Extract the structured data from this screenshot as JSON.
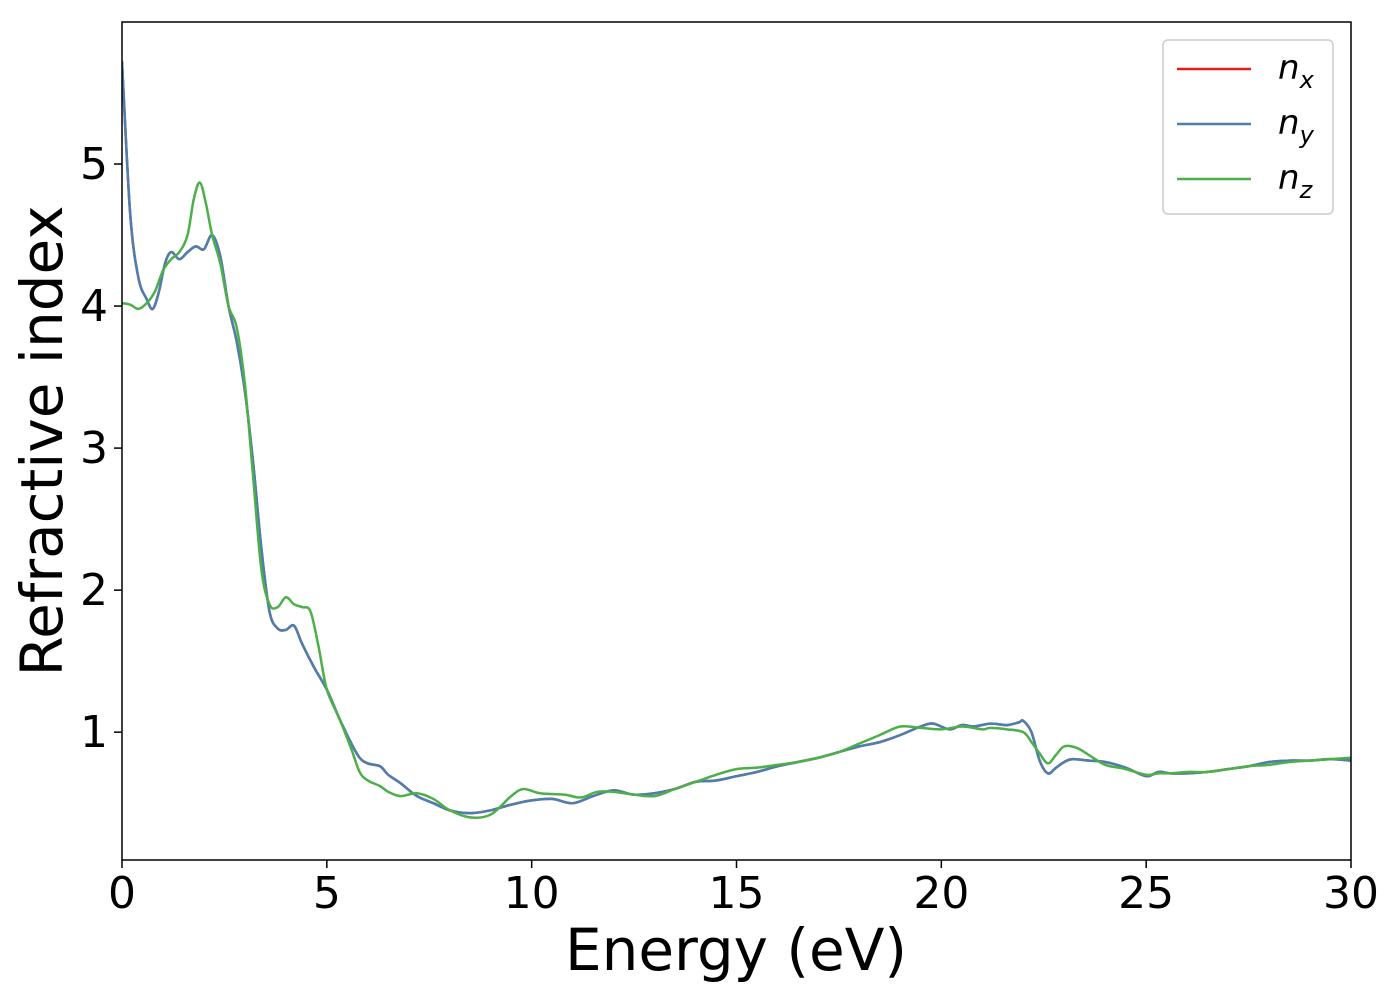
{
  "chart_data": {
    "type": "line",
    "xlabel": "Energy (eV)",
    "ylabel": "Refractive index",
    "xlim": [
      0,
      30
    ],
    "ylim": [
      0.1,
      6.0
    ],
    "xticks": [
      0,
      5,
      10,
      15,
      20,
      25,
      30
    ],
    "xtick_labels": [
      "0",
      "5",
      "10",
      "15",
      "20",
      "25",
      "30"
    ],
    "yticks": [
      1,
      2,
      3,
      4,
      5
    ],
    "ytick_labels": [
      "1",
      "2",
      "3",
      "4",
      "5"
    ],
    "grid": false,
    "legend_position": "top-right",
    "series": [
      {
        "name": "n_x",
        "label_main": "n",
        "label_sub": "x",
        "color": "#e41a1c",
        "x": [
          0,
          0.2,
          0.4,
          0.6,
          0.75,
          0.9,
          1.05,
          1.2,
          1.4,
          1.6,
          1.8,
          2.0,
          2.2,
          2.4,
          2.6,
          2.8,
          3.0,
          3.2,
          3.4,
          3.6,
          3.8,
          4.0,
          4.2,
          4.4,
          4.7,
          5.0,
          5.3,
          5.6,
          5.8,
          6.0,
          6.3,
          6.5,
          6.8,
          7.2,
          7.6,
          8.0,
          8.5,
          9.0,
          9.5,
          10.0,
          10.5,
          11.0,
          11.5,
          12.0,
          12.5,
          13.0,
          13.5,
          14.0,
          14.5,
          15.0,
          15.5,
          16.0,
          16.5,
          17.0,
          17.5,
          18.0,
          18.5,
          19.0,
          19.5,
          19.8,
          20.2,
          20.5,
          20.8,
          21.2,
          21.6,
          21.9,
          22.0,
          22.2,
          22.4,
          22.6,
          22.8,
          23.0,
          23.2,
          23.6,
          24.0,
          24.5,
          25.0,
          25.3,
          25.6,
          26.0,
          26.5,
          27.0,
          27.5,
          28.0,
          28.5,
          29.0,
          29.5,
          30.0
        ],
        "values": [
          5.72,
          4.65,
          4.2,
          4.05,
          3.98,
          4.1,
          4.3,
          4.38,
          4.33,
          4.38,
          4.42,
          4.4,
          4.5,
          4.35,
          4.0,
          3.75,
          3.4,
          2.9,
          2.3,
          1.85,
          1.73,
          1.72,
          1.75,
          1.62,
          1.45,
          1.3,
          1.1,
          0.92,
          0.82,
          0.78,
          0.76,
          0.7,
          0.64,
          0.55,
          0.5,
          0.45,
          0.43,
          0.45,
          0.49,
          0.52,
          0.53,
          0.5,
          0.55,
          0.59,
          0.56,
          0.57,
          0.6,
          0.65,
          0.66,
          0.69,
          0.72,
          0.76,
          0.79,
          0.82,
          0.86,
          0.9,
          0.93,
          0.98,
          1.04,
          1.06,
          1.02,
          1.05,
          1.04,
          1.06,
          1.05,
          1.07,
          1.08,
          1.0,
          0.8,
          0.71,
          0.75,
          0.79,
          0.81,
          0.8,
          0.79,
          0.75,
          0.69,
          0.72,
          0.71,
          0.71,
          0.72,
          0.74,
          0.76,
          0.79,
          0.8,
          0.8,
          0.81,
          0.8
        ]
      },
      {
        "name": "n_y",
        "label_main": "n",
        "label_sub": "y",
        "color": "#4a7fb0",
        "x": [
          0,
          0.2,
          0.4,
          0.6,
          0.75,
          0.9,
          1.05,
          1.2,
          1.4,
          1.6,
          1.8,
          2.0,
          2.2,
          2.4,
          2.6,
          2.8,
          3.0,
          3.2,
          3.4,
          3.6,
          3.8,
          4.0,
          4.2,
          4.4,
          4.7,
          5.0,
          5.3,
          5.6,
          5.8,
          6.0,
          6.3,
          6.5,
          6.8,
          7.2,
          7.6,
          8.0,
          8.5,
          9.0,
          9.5,
          10.0,
          10.5,
          11.0,
          11.5,
          12.0,
          12.5,
          13.0,
          13.5,
          14.0,
          14.5,
          15.0,
          15.5,
          16.0,
          16.5,
          17.0,
          17.5,
          18.0,
          18.5,
          19.0,
          19.5,
          19.8,
          20.2,
          20.5,
          20.8,
          21.2,
          21.6,
          21.9,
          22.0,
          22.2,
          22.4,
          22.6,
          22.8,
          23.0,
          23.2,
          23.6,
          24.0,
          24.5,
          25.0,
          25.3,
          25.6,
          26.0,
          26.5,
          27.0,
          27.5,
          28.0,
          28.5,
          29.0,
          29.5,
          30.0
        ],
        "values": [
          5.72,
          4.65,
          4.2,
          4.05,
          3.98,
          4.1,
          4.3,
          4.38,
          4.33,
          4.38,
          4.42,
          4.4,
          4.5,
          4.35,
          4.0,
          3.75,
          3.4,
          2.9,
          2.3,
          1.85,
          1.73,
          1.72,
          1.75,
          1.62,
          1.45,
          1.3,
          1.1,
          0.92,
          0.82,
          0.78,
          0.76,
          0.7,
          0.64,
          0.55,
          0.5,
          0.45,
          0.43,
          0.45,
          0.49,
          0.52,
          0.53,
          0.5,
          0.55,
          0.59,
          0.56,
          0.57,
          0.6,
          0.65,
          0.66,
          0.69,
          0.72,
          0.76,
          0.79,
          0.82,
          0.86,
          0.9,
          0.93,
          0.98,
          1.04,
          1.06,
          1.02,
          1.05,
          1.04,
          1.06,
          1.05,
          1.07,
          1.08,
          1.0,
          0.8,
          0.71,
          0.75,
          0.79,
          0.81,
          0.8,
          0.79,
          0.75,
          0.69,
          0.72,
          0.71,
          0.71,
          0.72,
          0.74,
          0.76,
          0.79,
          0.8,
          0.8,
          0.81,
          0.8
        ]
      },
      {
        "name": "n_z",
        "label_main": "n",
        "label_sub": "z",
        "color": "#4daf4a",
        "x": [
          0,
          0.2,
          0.4,
          0.6,
          0.8,
          1.0,
          1.2,
          1.4,
          1.6,
          1.75,
          1.9,
          2.05,
          2.2,
          2.4,
          2.6,
          2.8,
          3.0,
          3.2,
          3.4,
          3.6,
          3.8,
          4.0,
          4.2,
          4.4,
          4.6,
          4.8,
          5.0,
          5.3,
          5.6,
          5.8,
          6.0,
          6.3,
          6.5,
          6.8,
          7.2,
          7.6,
          8.0,
          8.5,
          9.0,
          9.5,
          9.8,
          10.2,
          10.8,
          11.2,
          11.6,
          12.0,
          12.5,
          13.0,
          13.5,
          14.0,
          14.5,
          15.0,
          15.5,
          16.0,
          16.5,
          17.0,
          17.5,
          18.0,
          18.5,
          19.0,
          19.5,
          20.0,
          20.5,
          21.0,
          21.2,
          21.6,
          22.0,
          22.2,
          22.4,
          22.6,
          22.8,
          23.0,
          23.3,
          23.6,
          24.0,
          24.5,
          25.0,
          25.3,
          25.6,
          26.0,
          26.5,
          27.0,
          27.5,
          28.0,
          28.5,
          29.0,
          29.5,
          30.0
        ],
        "values": [
          4.02,
          4.01,
          3.98,
          4.02,
          4.1,
          4.25,
          4.33,
          4.38,
          4.5,
          4.75,
          4.87,
          4.72,
          4.5,
          4.3,
          4.0,
          3.85,
          3.45,
          2.8,
          2.15,
          1.9,
          1.88,
          1.95,
          1.9,
          1.88,
          1.85,
          1.6,
          1.3,
          1.1,
          0.88,
          0.72,
          0.66,
          0.62,
          0.58,
          0.55,
          0.57,
          0.53,
          0.45,
          0.4,
          0.42,
          0.55,
          0.6,
          0.57,
          0.56,
          0.54,
          0.58,
          0.58,
          0.56,
          0.55,
          0.6,
          0.65,
          0.7,
          0.74,
          0.75,
          0.77,
          0.79,
          0.82,
          0.86,
          0.92,
          0.98,
          1.04,
          1.03,
          1.02,
          1.04,
          1.02,
          1.03,
          1.02,
          1.0,
          0.93,
          0.85,
          0.78,
          0.84,
          0.9,
          0.89,
          0.84,
          0.77,
          0.74,
          0.7,
          0.71,
          0.71,
          0.72,
          0.72,
          0.74,
          0.76,
          0.77,
          0.79,
          0.8,
          0.81,
          0.82
        ]
      }
    ]
  }
}
